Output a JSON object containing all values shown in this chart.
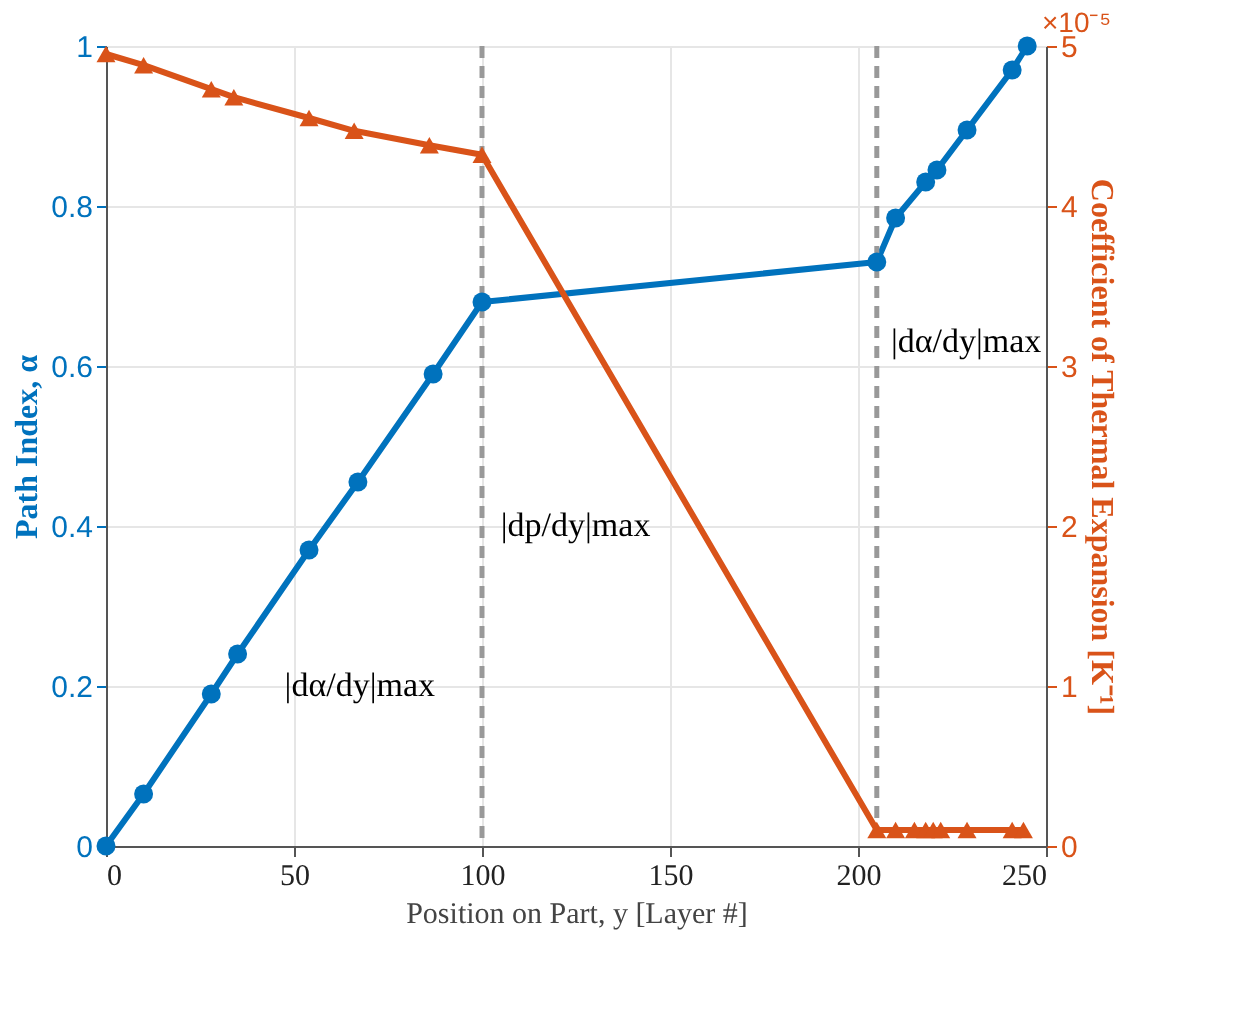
{
  "chart_data": {
    "type": "line",
    "xlabel": "Position on Part, y [Layer #]",
    "ylabel": "Path Index, α",
    "y2label": "Coefficient of Thermal Expansion [K⁻¹]",
    "series": [
      {
        "color": "#0072bd",
        "marker": "circle",
        "x": [
          0,
          10,
          28,
          35,
          54,
          67,
          87,
          100,
          205,
          210,
          218,
          221,
          229,
          241,
          245
        ],
        "values": [
          0,
          0.065,
          0.19,
          0.24,
          0.37,
          0.455,
          0.59,
          0.68,
          0.73,
          0.785,
          0.83,
          0.845,
          0.895,
          0.97,
          1.0
        ]
      },
      {
        "color": "#d95319",
        "marker": "triangle",
        "axis": "y2",
        "x": [
          0,
          10,
          28,
          34,
          54,
          66,
          86,
          100,
          205,
          210,
          215,
          218,
          220,
          222,
          229,
          241,
          244
        ],
        "values": [
          4.95,
          4.88,
          4.73,
          4.68,
          4.55,
          4.47,
          4.38,
          4.32,
          0.1,
          0.1,
          0.1,
          0.1,
          0.1,
          0.1,
          0.1,
          0.1,
          0.1
        ]
      }
    ],
    "xlim": [
      0,
      250
    ],
    "xticks": [
      0,
      50,
      100,
      150,
      200,
      250
    ],
    "ylim": [
      0,
      1
    ],
    "yticks": [
      0,
      0.2,
      0.4,
      0.6,
      0.8,
      1
    ],
    "y2lim": [
      0,
      5
    ],
    "y2ticks": [
      0,
      1,
      2,
      3,
      4,
      5
    ],
    "ref_lines": [
      {
        "axis": "x",
        "value": 100,
        "color": "#999999",
        "line_style": "dashed"
      },
      {
        "axis": "x",
        "value": 205,
        "color": "#999999",
        "line_style": "dashed"
      }
    ],
    "annotations": [
      "×10⁻⁵",
      "|dα/dy|max",
      "|dp/dy|max",
      "|dα/dy|max"
    ],
    "grid": true,
    "line_style": "solid"
  }
}
